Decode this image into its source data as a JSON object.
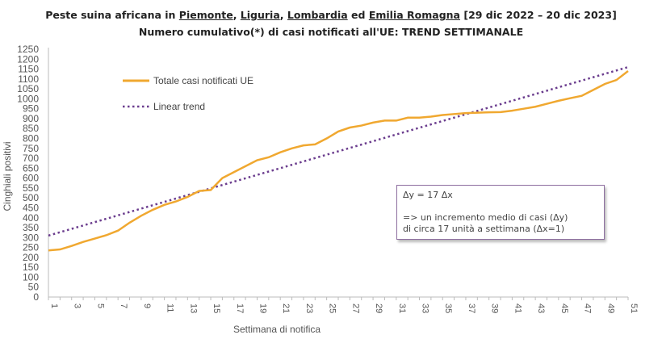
{
  "title": {
    "prefix": "Peste suina africana in ",
    "regions": [
      "Piemonte",
      "Liguria",
      "Lombardia",
      "Emilia Romagna"
    ],
    "sep1": ", ",
    "sep2": ", ",
    "sep3": " ed ",
    "suffix": " [29 dic 2022 – 20 dic 2023]",
    "subtitle": "Numero cumulativo(*) di casi notificati all'UE: TREND SETTIMANALE"
  },
  "annotation": {
    "line1": "Δy = 17 Δx",
    "line2": "=>  un incremento medio di casi (Δy)",
    "line3": "di circa 17 unità a settimana (Δx=1)"
  },
  "chart_data": {
    "type": "line",
    "xlabel": "Settimana di notifica",
    "ylabel": "Cinghiali positivi",
    "ylim": [
      0,
      1250
    ],
    "yticks": [
      0,
      50,
      100,
      150,
      200,
      250,
      300,
      350,
      400,
      450,
      500,
      550,
      600,
      650,
      700,
      750,
      800,
      850,
      900,
      950,
      1000,
      1050,
      1100,
      1150,
      1200,
      1250
    ],
    "xlim": [
      1,
      51
    ],
    "xtick_labels": [
      1,
      3,
      5,
      7,
      9,
      11,
      13,
      15,
      17,
      19,
      21,
      23,
      25,
      27,
      29,
      31,
      33,
      35,
      37,
      39,
      41,
      43,
      45,
      47,
      49,
      51
    ],
    "grid": false,
    "legend_position": "top-left",
    "x": [
      1,
      2,
      3,
      4,
      5,
      6,
      7,
      8,
      9,
      10,
      11,
      12,
      13,
      14,
      15,
      16,
      17,
      18,
      19,
      20,
      21,
      22,
      23,
      24,
      25,
      26,
      27,
      28,
      29,
      30,
      31,
      32,
      33,
      34,
      35,
      36,
      37,
      38,
      39,
      40,
      41,
      42,
      43,
      44,
      45,
      46,
      47,
      48,
      49,
      50,
      51
    ],
    "series": [
      {
        "name": "Totale casi notificati UE",
        "color": "#f0a830",
        "style": "solid",
        "values": [
          235,
          240,
          258,
          278,
          295,
          312,
          335,
          375,
          410,
          440,
          465,
          482,
          505,
          535,
          540,
          600,
          630,
          660,
          690,
          705,
          730,
          750,
          765,
          770,
          800,
          835,
          855,
          865,
          880,
          890,
          890,
          905,
          905,
          910,
          918,
          923,
          928,
          930,
          932,
          933,
          940,
          950,
          960,
          975,
          990,
          1003,
          1015,
          1045,
          1075,
          1095,
          1140
        ]
      },
      {
        "name": "Linear trend",
        "color": "#6b3d8e",
        "style": "dotted",
        "values_start_end": [
          310,
          1160
        ],
        "slope": 17
      }
    ]
  }
}
